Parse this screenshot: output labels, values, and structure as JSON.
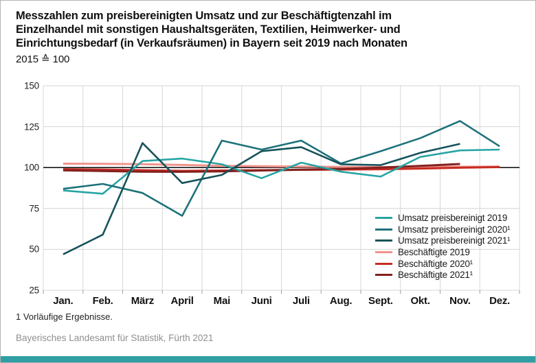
{
  "header": {
    "title_lines": [
      "Messzahlen zum preisbereinigten Umsatz und zur Beschäftigtenzahl im",
      "Einzelhandel mit sonstigen Haushaltsgeräten, Textilien, Heimwerker- und",
      "Einrichtungsbedarf (in Verkaufsräumen) in Bayern seit 2019 nach Monaten"
    ],
    "subtitle": "2015 ≙ 100"
  },
  "footnote": "1  Vorläufige Ergebnisse.",
  "source": "Bayerisches Landesamt für Statistik, Fürth 2021",
  "accent_bar_color": "#2f9fa3",
  "chart_data": {
    "type": "line",
    "title": "Messzahlen zum preisbereinigten Umsatz und zur Beschäftigtenzahl im Einzelhandel mit sonstigen Haushaltsgeräten, Textilien, Heimwerker- und Einrichtungsbedarf (in Verkaufsräumen) in Bayern seit 2019 nach Monaten",
    "subtitle": "2015 ≙ 100",
    "categories": [
      "Jan.",
      "Feb.",
      "März",
      "April",
      "Mai",
      "Juni",
      "Juli",
      "Aug.",
      "Sept.",
      "Okt.",
      "Nov.",
      "Dez."
    ],
    "y_ticks": [
      150,
      125,
      100,
      75,
      50,
      25
    ],
    "ylim": [
      25,
      150
    ],
    "reference_line": 100,
    "grid": true,
    "legend_position": "inside-right",
    "series": [
      {
        "name": "Umsatz preisbereinigt 2019",
        "color": "#26a5a3",
        "values": [
          86,
          84,
          104,
          105.5,
          102,
          93.5,
          103,
          97.5,
          94.5,
          106.5,
          110.5,
          111
        ]
      },
      {
        "name": "Umsatz preisbereinigt 2020¹",
        "color": "#1d7179",
        "values": [
          87,
          90,
          84.5,
          70.5,
          116.5,
          111,
          116.5,
          102.5,
          110,
          118,
          128.5,
          113
        ]
      },
      {
        "name": "Umsatz preisbereinigt 2021¹",
        "color": "#16525a",
        "values": [
          47,
          59,
          115,
          90.5,
          95.5,
          110,
          112.5,
          102,
          101.5,
          109,
          114.5,
          null
        ]
      },
      {
        "name": "Beschäftigte 2019",
        "color": "#f0938c",
        "values": [
          102.4,
          102.3,
          102.1,
          101.6,
          101.1,
          100.8,
          100.6,
          100.4,
          100.3,
          100.4,
          100.5,
          100.6
        ]
      },
      {
        "name": "Beschäftigte 2020¹",
        "color": "#c62a22",
        "values": [
          99,
          98.8,
          98.4,
          98,
          98.2,
          98.4,
          98.6,
          98.8,
          99,
          99.4,
          99.9,
          100.3
        ]
      },
      {
        "name": "Beschäftigte 2021¹",
        "color": "#82211f",
        "values": [
          98.3,
          97.9,
          97.5,
          97.4,
          97.7,
          98.2,
          98.7,
          99.2,
          100,
          101,
          102.2,
          null
        ]
      }
    ]
  }
}
